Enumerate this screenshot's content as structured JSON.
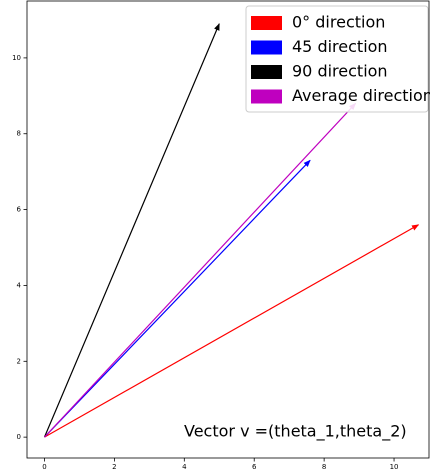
{
  "chart_data": {
    "type": "vector",
    "annotation": "Vector v =(theta_1,theta_2)",
    "xlim": [
      -0.5,
      11
    ],
    "ylim": [
      -0.55,
      11.5
    ],
    "xticks": [
      0,
      2,
      4,
      6,
      8,
      10
    ],
    "yticks": [
      0,
      2,
      4,
      6,
      8,
      10
    ],
    "legend": "upper right",
    "series": [
      {
        "name": "0° direction",
        "color": "#ff0000",
        "x": [
          0,
          10.7
        ],
        "y": [
          0,
          5.6
        ]
      },
      {
        "name": "45 direction",
        "color": "#0000ff",
        "x": [
          0,
          7.6
        ],
        "y": [
          0,
          7.3
        ]
      },
      {
        "name": "90 direction",
        "color": "#000000",
        "x": [
          0,
          5.0
        ],
        "y": [
          0,
          10.9
        ]
      },
      {
        "name": "Average direction",
        "color": "#bf00bf",
        "x": [
          0,
          8.9
        ],
        "y": [
          0,
          8.8
        ]
      }
    ]
  }
}
